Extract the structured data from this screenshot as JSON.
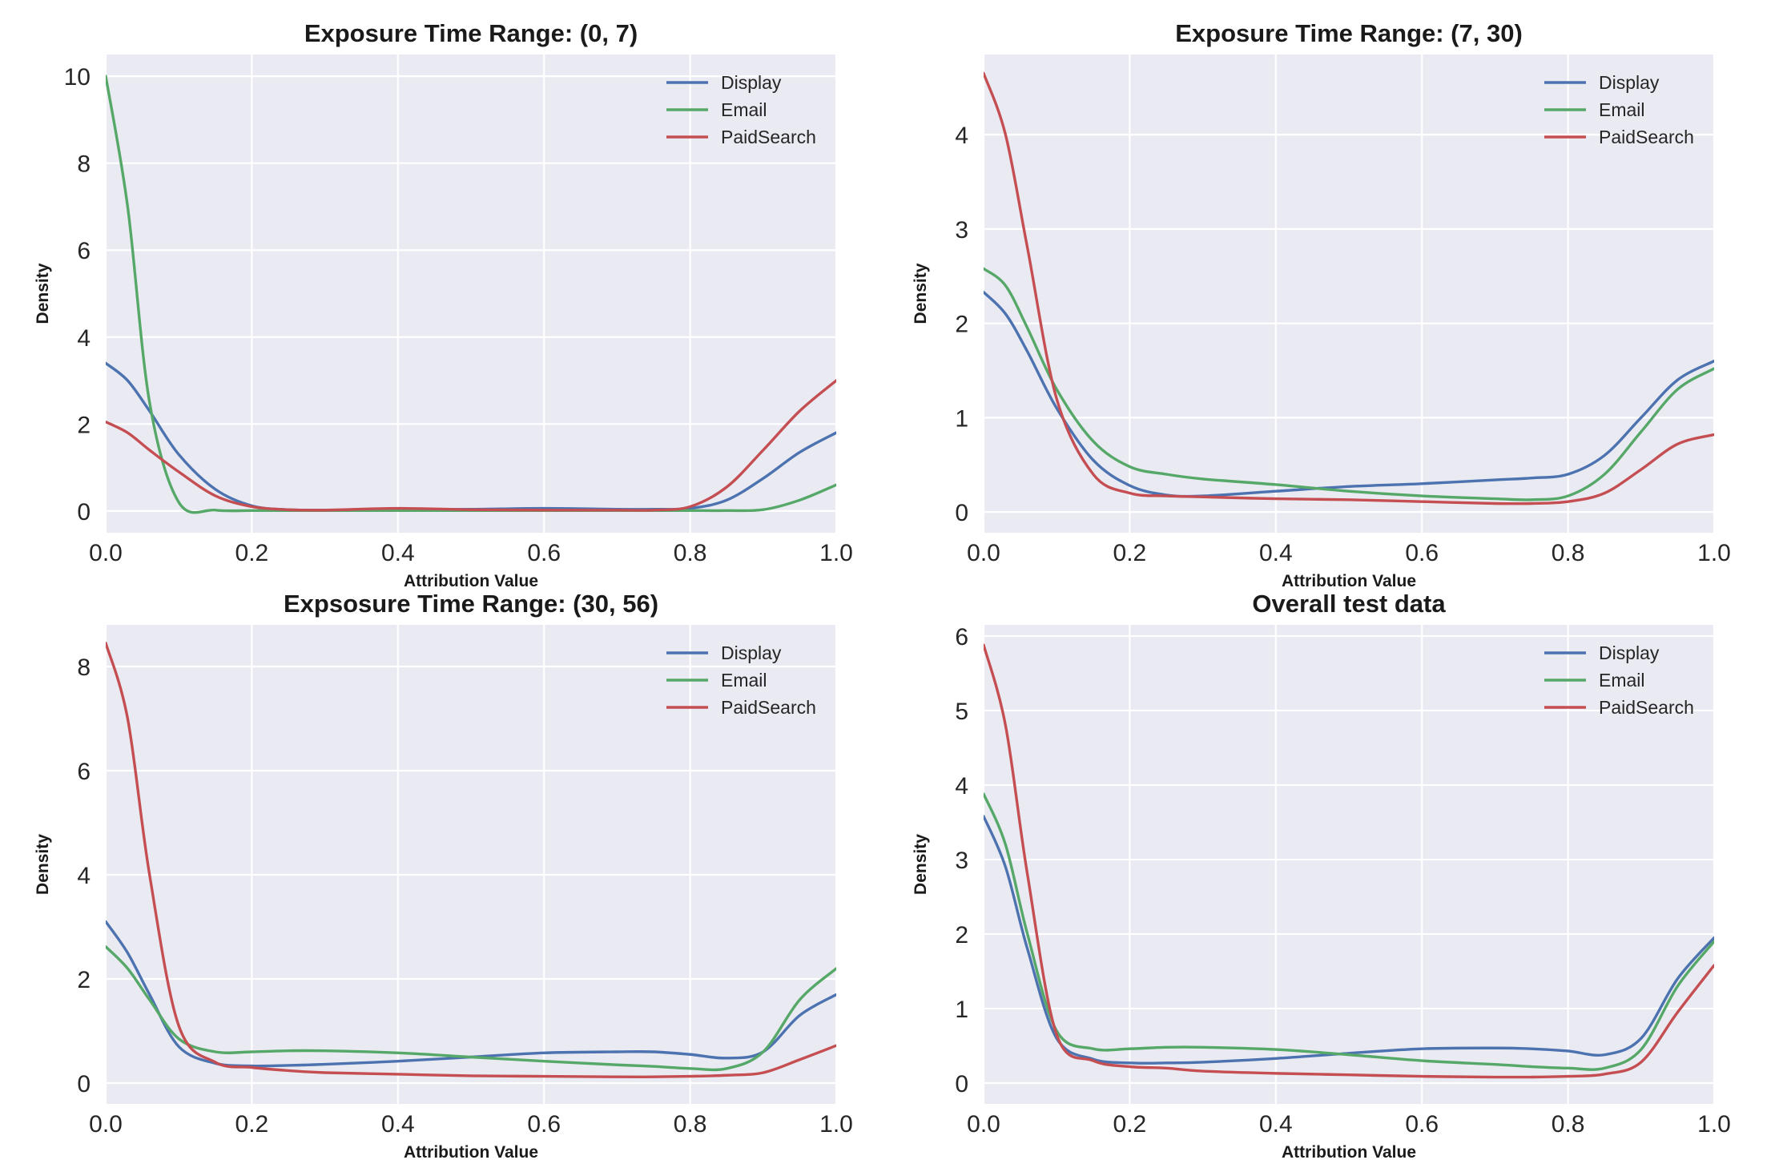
{
  "colors": {
    "Display": "#4C72B0",
    "Email": "#55A868",
    "PaidSearch": "#C44E52",
    "plot_background": "#EAEAF2",
    "grid": "#FFFFFF"
  },
  "chart_data": [
    {
      "type": "line",
      "title": "Exposure Time Range: (0, 7)",
      "xlabel": "Attribution Value",
      "ylabel": "Density",
      "xlim": [
        0,
        1
      ],
      "ylim": [
        -0.5,
        10.5
      ],
      "xticks": [
        "0.0",
        "0.2",
        "0.4",
        "0.6",
        "0.8",
        "1.0"
      ],
      "yticks": [
        "0",
        "2",
        "4",
        "6",
        "8",
        "10"
      ],
      "grid": true,
      "legend": "top-right",
      "x": [
        0.0,
        0.03,
        0.06,
        0.1,
        0.15,
        0.2,
        0.25,
        0.3,
        0.4,
        0.5,
        0.6,
        0.7,
        0.75,
        0.8,
        0.85,
        0.9,
        0.95,
        1.0
      ],
      "series": [
        {
          "name": "Display",
          "values": [
            3.4,
            3.0,
            2.3,
            1.3,
            0.5,
            0.12,
            0.03,
            0.02,
            0.03,
            0.04,
            0.06,
            0.04,
            0.04,
            0.06,
            0.25,
            0.75,
            1.35,
            1.8
          ]
        },
        {
          "name": "Email",
          "values": [
            10.0,
            7.0,
            2.5,
            0.2,
            0.02,
            0.01,
            0.01,
            0.01,
            0.01,
            0.01,
            0.01,
            0.01,
            0.01,
            0.01,
            0.01,
            0.03,
            0.25,
            0.6
          ]
        },
        {
          "name": "PaidSearch",
          "values": [
            2.05,
            1.8,
            1.4,
            0.9,
            0.35,
            0.1,
            0.03,
            0.02,
            0.06,
            0.03,
            0.02,
            0.02,
            0.02,
            0.1,
            0.55,
            1.4,
            2.3,
            3.0
          ]
        }
      ]
    },
    {
      "type": "line",
      "title": "Exposure Time Range: (7, 30)",
      "xlabel": "Attribution Value",
      "ylabel": "Density",
      "xlim": [
        0,
        1
      ],
      "ylim": [
        -0.22,
        4.85
      ],
      "xticks": [
        "0.0",
        "0.2",
        "0.4",
        "0.6",
        "0.8",
        "1.0"
      ],
      "yticks": [
        "0",
        "1",
        "2",
        "3",
        "4"
      ],
      "grid": true,
      "legend": "top-right",
      "x": [
        0.0,
        0.03,
        0.06,
        0.1,
        0.15,
        0.2,
        0.25,
        0.3,
        0.4,
        0.5,
        0.6,
        0.7,
        0.75,
        0.8,
        0.85,
        0.9,
        0.95,
        1.0
      ],
      "series": [
        {
          "name": "Display",
          "values": [
            2.33,
            2.1,
            1.7,
            1.1,
            0.55,
            0.28,
            0.18,
            0.17,
            0.22,
            0.27,
            0.3,
            0.34,
            0.36,
            0.4,
            0.6,
            1.0,
            1.4,
            1.6
          ]
        },
        {
          "name": "Email",
          "values": [
            2.58,
            2.4,
            1.95,
            1.3,
            0.75,
            0.48,
            0.4,
            0.35,
            0.29,
            0.22,
            0.17,
            0.14,
            0.13,
            0.17,
            0.4,
            0.85,
            1.3,
            1.52
          ]
        },
        {
          "name": "PaidSearch",
          "values": [
            4.65,
            4.0,
            2.8,
            1.2,
            0.4,
            0.2,
            0.17,
            0.16,
            0.14,
            0.13,
            0.11,
            0.09,
            0.09,
            0.11,
            0.2,
            0.45,
            0.72,
            0.82
          ]
        }
      ]
    },
    {
      "type": "line",
      "title": "Expsosure Time Range: (30, 56)",
      "xlabel": "Attribution Value",
      "ylabel": "Density",
      "xlim": [
        0,
        1
      ],
      "ylim": [
        -0.4,
        8.8
      ],
      "xticks": [
        "0.0",
        "0.2",
        "0.4",
        "0.6",
        "0.8",
        "1.0"
      ],
      "yticks": [
        "0",
        "2",
        "4",
        "6",
        "8"
      ],
      "grid": true,
      "legend": "top-right",
      "x": [
        0.0,
        0.03,
        0.06,
        0.1,
        0.15,
        0.2,
        0.25,
        0.3,
        0.4,
        0.5,
        0.6,
        0.7,
        0.75,
        0.8,
        0.85,
        0.9,
        0.95,
        1.0
      ],
      "series": [
        {
          "name": "Display",
          "values": [
            3.1,
            2.5,
            1.7,
            0.7,
            0.38,
            0.33,
            0.34,
            0.36,
            0.42,
            0.5,
            0.58,
            0.6,
            0.6,
            0.55,
            0.48,
            0.6,
            1.3,
            1.7
          ]
        },
        {
          "name": "Email",
          "values": [
            2.62,
            2.2,
            1.6,
            0.85,
            0.6,
            0.6,
            0.62,
            0.62,
            0.58,
            0.5,
            0.42,
            0.35,
            0.32,
            0.28,
            0.28,
            0.6,
            1.6,
            2.2
          ]
        },
        {
          "name": "PaidSearch",
          "values": [
            8.45,
            7.0,
            4.0,
            1.1,
            0.4,
            0.3,
            0.24,
            0.2,
            0.17,
            0.14,
            0.13,
            0.12,
            0.12,
            0.13,
            0.15,
            0.2,
            0.45,
            0.72
          ]
        }
      ]
    },
    {
      "type": "line",
      "title": "Overall test data",
      "xlabel": "Attribution Value",
      "ylabel": "Density",
      "xlim": [
        0,
        1
      ],
      "ylim": [
        -0.28,
        6.15
      ],
      "xticks": [
        "0.0",
        "0.2",
        "0.4",
        "0.6",
        "0.8",
        "1.0"
      ],
      "yticks": [
        "0",
        "1",
        "2",
        "3",
        "4",
        "5",
        "6"
      ],
      "grid": true,
      "legend": "top-right",
      "x": [
        0.0,
        0.03,
        0.06,
        0.1,
        0.15,
        0.2,
        0.25,
        0.3,
        0.4,
        0.5,
        0.6,
        0.7,
        0.75,
        0.8,
        0.85,
        0.9,
        0.95,
        1.0
      ],
      "series": [
        {
          "name": "Display",
          "values": [
            3.58,
            2.9,
            1.8,
            0.6,
            0.32,
            0.27,
            0.27,
            0.28,
            0.33,
            0.4,
            0.46,
            0.47,
            0.46,
            0.43,
            0.38,
            0.6,
            1.4,
            1.95
          ]
        },
        {
          "name": "Email",
          "values": [
            3.88,
            3.2,
            2.0,
            0.7,
            0.46,
            0.46,
            0.48,
            0.48,
            0.45,
            0.38,
            0.3,
            0.25,
            0.22,
            0.2,
            0.2,
            0.45,
            1.3,
            1.9
          ]
        },
        {
          "name": "PaidSearch",
          "values": [
            5.88,
            4.8,
            2.8,
            0.65,
            0.3,
            0.22,
            0.2,
            0.16,
            0.13,
            0.11,
            0.09,
            0.08,
            0.08,
            0.09,
            0.12,
            0.28,
            0.95,
            1.58
          ]
        }
      ]
    }
  ]
}
